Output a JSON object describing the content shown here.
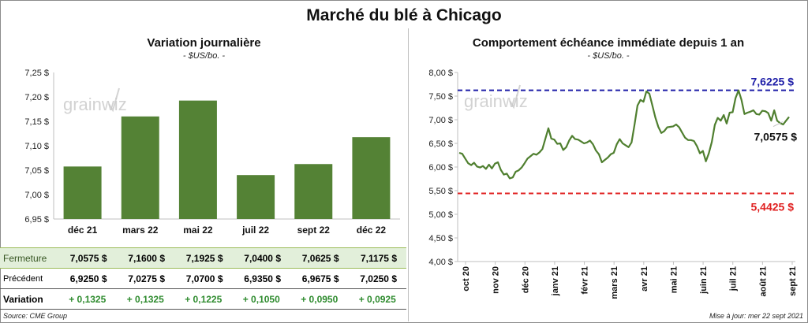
{
  "title": "Marché du blé à Chicago",
  "source": "Source: CME Group",
  "updated": "Mise à jour: mer 22 sept 2021",
  "watermark": "grainwiz",
  "colors": {
    "bar": "#548235",
    "line": "#4f7f2f",
    "high": "#1f1fa8",
    "low": "#e02020"
  },
  "table": {
    "rows": [
      {
        "label": "Fermeture",
        "values": [
          "7,0575  $",
          "7,1600  $",
          "7,1925  $",
          "7,0400  $",
          "7,0625  $",
          "7,1175  $"
        ]
      },
      {
        "label": "Précédent",
        "values": [
          "6,9250  $",
          "7,0275  $",
          "7,0700  $",
          "6,9350  $",
          "6,9675  $",
          "7,0250  $"
        ]
      },
      {
        "label": "Variation",
        "values": [
          "+ 0,1325",
          "+ 0,1325",
          "+ 0,1225",
          "+ 0,1050",
          "+ 0,0950",
          "+ 0,0925"
        ]
      }
    ]
  },
  "chart_data": [
    {
      "type": "bar",
      "title": "Variation  journalière",
      "subtitle": "- $US/bo. -",
      "categories": [
        "déc 21",
        "mars 22",
        "mai 22",
        "juil 22",
        "sept 22",
        "déc 22"
      ],
      "values": [
        7.0575,
        7.16,
        7.1925,
        7.04,
        7.0625,
        7.1175
      ],
      "ylim": [
        6.95,
        7.25
      ],
      "yticks": [
        6.95,
        7.0,
        7.05,
        7.1,
        7.15,
        7.2,
        7.25
      ],
      "ytick_labels": [
        "6,95 $",
        "7,00 $",
        "7,05 $",
        "7,10 $",
        "7,15 $",
        "7,20 $",
        "7,25 $"
      ],
      "grid": false
    },
    {
      "type": "line",
      "title": "Comportement  échéance immédiate depuis 1 an",
      "subtitle": "- $US/bo. -",
      "ylim": [
        4.0,
        8.0
      ],
      "yticks": [
        4.0,
        4.5,
        5.0,
        5.5,
        6.0,
        6.5,
        7.0,
        7.5,
        8.0
      ],
      "ytick_labels": [
        "4,00 $",
        "4,50 $",
        "5,00 $",
        "5,50 $",
        "6,00 $",
        "6,50 $",
        "7,00 $",
        "7,50 $",
        "8,00 $"
      ],
      "xlabels": [
        "oct 20",
        "nov 20",
        "déc 20",
        "janv 21",
        "févr 21",
        "mars 21",
        "avr 21",
        "mai 21",
        "juin 21",
        "juil 21",
        "août 21",
        "sept 21"
      ],
      "high": {
        "value": 7.6225,
        "label": "7,6225 $"
      },
      "low": {
        "value": 5.4425,
        "label": "5,4425 $"
      },
      "last": {
        "value": 7.0575,
        "label": "7,0575 $"
      },
      "values": [
        6.3,
        6.28,
        6.18,
        6.08,
        6.04,
        6.09,
        6.01,
        5.99,
        6.02,
        5.96,
        6.05,
        5.97,
        6.07,
        6.1,
        5.94,
        5.84,
        5.86,
        5.76,
        5.78,
        5.9,
        5.93,
        5.99,
        6.08,
        6.18,
        6.23,
        6.28,
        6.26,
        6.31,
        6.38,
        6.6,
        6.82,
        6.6,
        6.58,
        6.49,
        6.5,
        6.36,
        6.42,
        6.56,
        6.66,
        6.59,
        6.58,
        6.54,
        6.5,
        6.52,
        6.56,
        6.48,
        6.35,
        6.27,
        6.1,
        6.15,
        6.2,
        6.27,
        6.3,
        6.48,
        6.59,
        6.5,
        6.46,
        6.42,
        6.52,
        6.9,
        7.3,
        7.42,
        7.38,
        7.6,
        7.55,
        7.3,
        7.05,
        6.85,
        6.72,
        6.76,
        6.84,
        6.85,
        6.86,
        6.9,
        6.84,
        6.73,
        6.62,
        6.57,
        6.57,
        6.55,
        6.44,
        6.29,
        6.34,
        6.12,
        6.29,
        6.53,
        6.89,
        7.04,
        6.98,
        7.1,
        6.92,
        7.15,
        7.16,
        7.46,
        7.62,
        7.42,
        7.12,
        7.15,
        7.17,
        7.2,
        7.12,
        7.11,
        7.19,
        7.18,
        7.14,
        6.98,
        7.2,
        6.98,
        6.93,
        6.9,
        6.98,
        7.06
      ]
    }
  ]
}
